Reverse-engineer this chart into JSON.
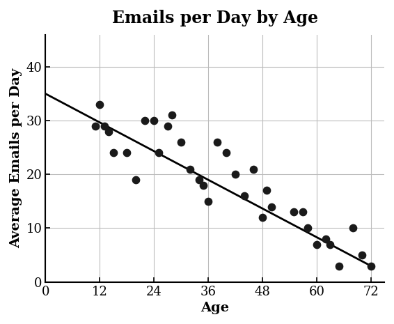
{
  "title": "Emails per Day by Age",
  "xlabel": "Age",
  "ylabel": "Average Emails per Day",
  "scatter_x": [
    11,
    12,
    13,
    14,
    15,
    18,
    20,
    22,
    24,
    25,
    27,
    28,
    30,
    32,
    34,
    35,
    36,
    38,
    40,
    42,
    44,
    46,
    48,
    49,
    50,
    55,
    57,
    58,
    60,
    62,
    63,
    65,
    68,
    70,
    72
  ],
  "scatter_y": [
    29,
    33,
    29,
    28,
    24,
    24,
    19,
    30,
    30,
    24,
    29,
    31,
    26,
    21,
    19,
    18,
    15,
    26,
    24,
    20,
    16,
    21,
    12,
    17,
    14,
    13,
    13,
    10,
    7,
    8,
    7,
    3,
    10,
    5,
    3
  ],
  "line_x": [
    0,
    72
  ],
  "line_y": [
    35,
    3
  ],
  "xlim": [
    0,
    75
  ],
  "ylim": [
    0,
    46
  ],
  "xticks": [
    0,
    12,
    24,
    36,
    48,
    60,
    72
  ],
  "yticks": [
    0,
    10,
    20,
    30,
    40
  ],
  "dot_color": "#1a1a1a",
  "line_color": "#000000",
  "background_color": "#ffffff",
  "title_fontsize": 17,
  "label_fontsize": 14,
  "tick_fontsize": 13,
  "dot_size": 55,
  "line_width": 2.0
}
